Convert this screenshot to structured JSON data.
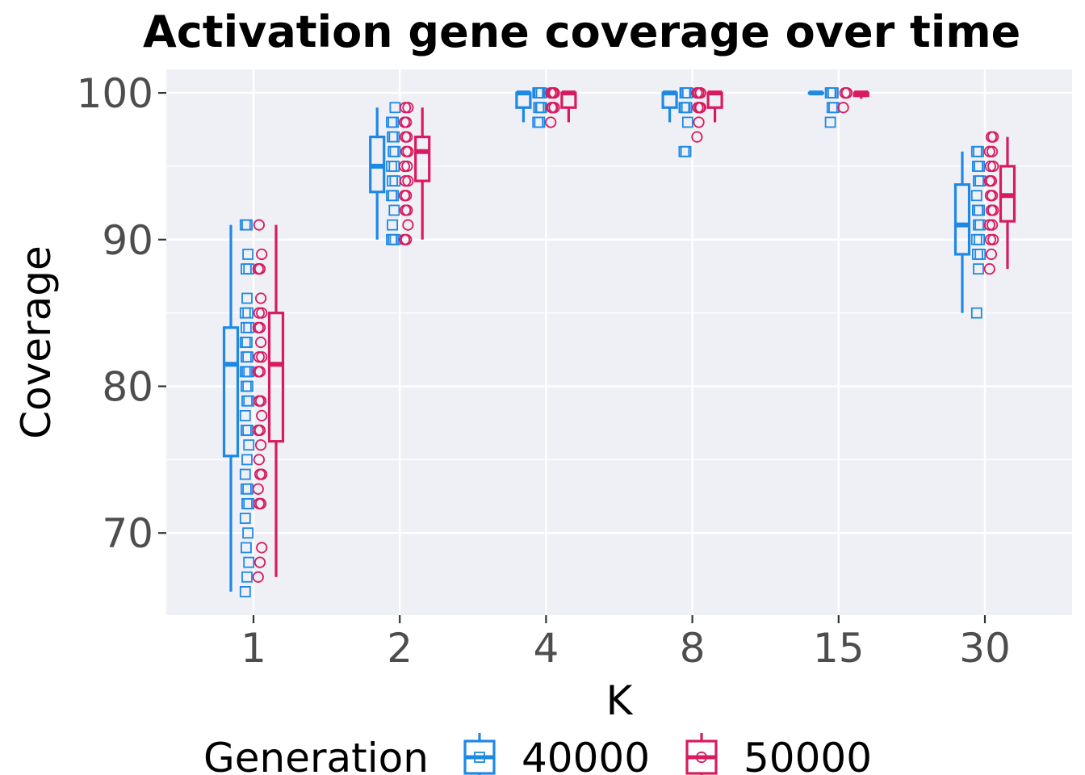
{
  "chart_data": {
    "type": "box",
    "title": "Activation gene coverage over time",
    "xlabel": "K",
    "ylabel": "Coverage",
    "categories": [
      "1",
      "2",
      "4",
      "8",
      "15",
      "30"
    ],
    "ylim": [
      64.4,
      101.6
    ],
    "yticks": [
      70,
      80,
      90,
      100
    ],
    "grid": true,
    "legend": {
      "title": "Generation",
      "position": "bottom",
      "entries": [
        "40000",
        "50000"
      ]
    },
    "series": [
      {
        "name": "40000",
        "color": "#1e88e5",
        "marker": "square",
        "boxes": [
          {
            "min": 66,
            "q1": 75.25,
            "median": 81.5,
            "q3": 84,
            "max": 91
          },
          {
            "min": 90,
            "q1": 93.25,
            "median": 95,
            "q3": 97,
            "max": 99
          },
          {
            "min": 98,
            "q1": 99,
            "median": 100,
            "q3": 100,
            "max": 100
          },
          {
            "min": 98,
            "q1": 99,
            "median": 100,
            "q3": 100,
            "max": 100
          },
          {
            "min": 100,
            "q1": 100,
            "median": 100,
            "q3": 100,
            "max": 100
          },
          {
            "min": 85,
            "q1": 89,
            "median": 91,
            "q3": 93.75,
            "max": 96
          }
        ],
        "points": [
          [
            66,
            67,
            68,
            69,
            70,
            71,
            72,
            72,
            73,
            73,
            74,
            75,
            76,
            77,
            77,
            78,
            79,
            79,
            80,
            80,
            81,
            81,
            81,
            82,
            82,
            83,
            83,
            84,
            84,
            85,
            85,
            86,
            88,
            88,
            89,
            91,
            91
          ],
          [
            90,
            90,
            90,
            91,
            92,
            93,
            93,
            94,
            94,
            95,
            95,
            96,
            96,
            97,
            97,
            98,
            98,
            99
          ],
          [
            98,
            98,
            99,
            99,
            99,
            100,
            100,
            100,
            100
          ],
          [
            96,
            96,
            98,
            99,
            99,
            99,
            100,
            100,
            100
          ],
          [
            98,
            99,
            99,
            100,
            100,
            100
          ],
          [
            85,
            88,
            89,
            89,
            90,
            90,
            91,
            91,
            92,
            92,
            93,
            94,
            94,
            95,
            95,
            96,
            96
          ]
        ]
      },
      {
        "name": "50000",
        "color": "#d81b60",
        "marker": "circle",
        "boxes": [
          {
            "min": 67,
            "q1": 76.25,
            "median": 81.5,
            "q3": 85,
            "max": 91
          },
          {
            "min": 90,
            "q1": 94,
            "median": 96,
            "q3": 97,
            "max": 99
          },
          {
            "min": 98,
            "q1": 99,
            "median": 100,
            "q3": 100,
            "max": 100
          },
          {
            "min": 98,
            "q1": 99,
            "median": 100,
            "q3": 100,
            "max": 100
          },
          {
            "min": 99.6,
            "q1": 99.8,
            "median": 100,
            "q3": 100,
            "max": 100
          },
          {
            "min": 88,
            "q1": 91.25,
            "median": 93,
            "q3": 95,
            "max": 97
          }
        ],
        "points": [
          [
            67,
            68,
            69,
            72,
            72,
            73,
            74,
            74,
            75,
            76,
            77,
            77,
            78,
            79,
            79,
            81,
            81,
            82,
            82,
            83,
            84,
            84,
            85,
            85,
            86,
            88,
            88,
            89,
            91
          ],
          [
            90,
            90,
            91,
            92,
            92,
            93,
            93,
            94,
            94,
            95,
            95,
            96,
            96,
            97,
            97,
            98,
            98,
            99,
            99
          ],
          [
            98,
            99,
            99,
            99,
            100,
            100,
            100,
            100
          ],
          [
            97,
            98,
            99,
            99,
            99,
            100,
            100,
            100
          ],
          [
            99,
            100,
            100
          ],
          [
            88,
            89,
            90,
            90,
            91,
            91,
            92,
            92,
            93,
            93,
            94,
            94,
            95,
            95,
            96,
            96,
            97,
            97
          ]
        ]
      }
    ]
  }
}
